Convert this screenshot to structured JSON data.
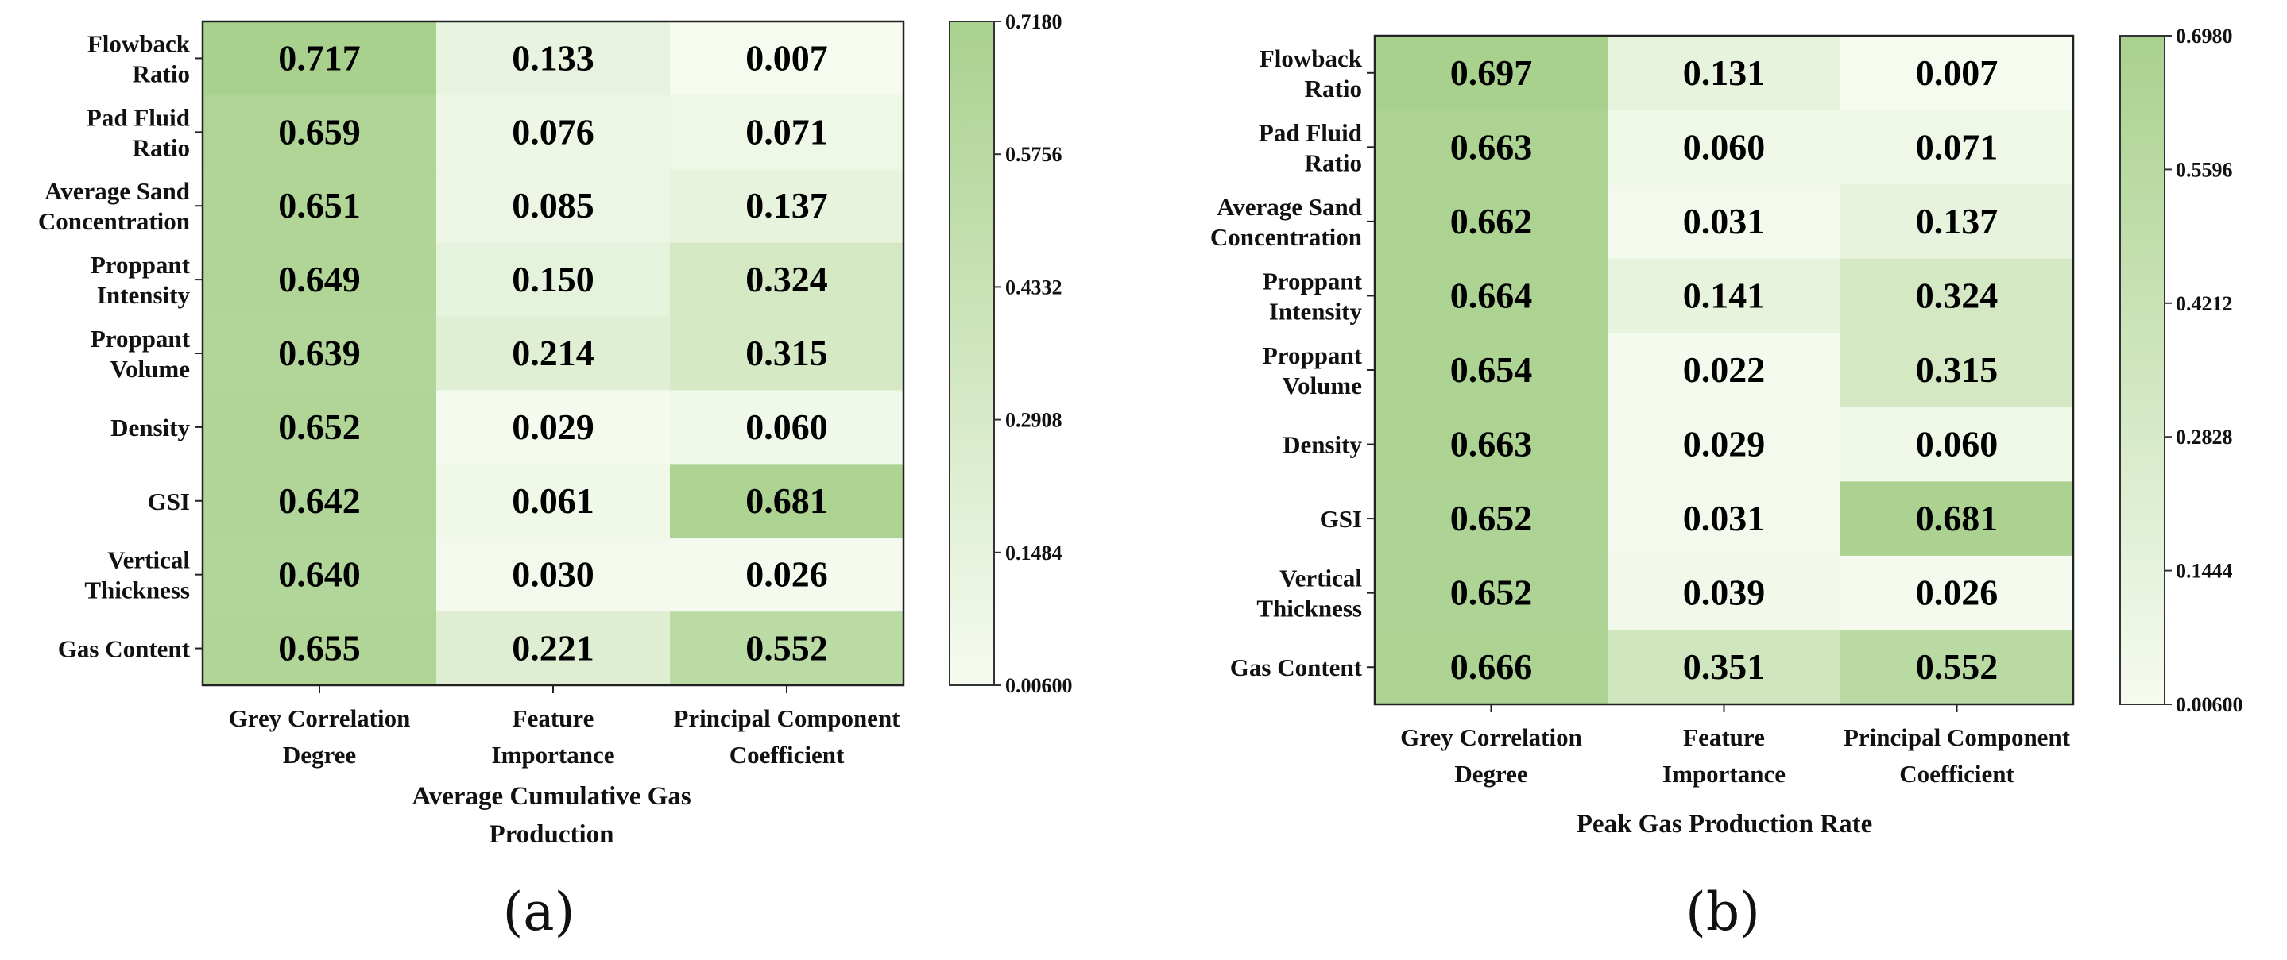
{
  "chart_data": [
    {
      "type": "heatmap",
      "panel_label": "(a)",
      "xlabel": "Average Cumulative Gas Production",
      "rows": [
        "Flowback Ratio",
        "Pad Fluid Ratio",
        "Average Sand Concentration",
        "Proppant Intensity",
        "Proppant Volume",
        "Density",
        "GSI",
        "Vertical Thickness",
        "Gas Content"
      ],
      "row_lines": [
        [
          "Flowback",
          "Ratio"
        ],
        [
          "Pad Fluid",
          "Ratio"
        ],
        [
          "Average Sand",
          "Concentration"
        ],
        [
          "Proppant",
          "Intensity"
        ],
        [
          "Proppant",
          "Volume"
        ],
        [
          "Density"
        ],
        [
          "GSI"
        ],
        [
          "Vertical",
          "Thickness"
        ],
        [
          "Gas Content"
        ]
      ],
      "columns": [
        "Grey Correlation Degree",
        "Feature Importance",
        "Principal Component Coefficient"
      ],
      "column_lines": [
        [
          "Grey Correlation",
          "Degree"
        ],
        [
          "Feature",
          "Importance"
        ],
        [
          "Principal Component",
          "Coefficient"
        ]
      ],
      "values": [
        [
          "0.717",
          "0.133",
          "0.007"
        ],
        [
          "0.659",
          "0.076",
          "0.071"
        ],
        [
          "0.651",
          "0.085",
          "0.137"
        ],
        [
          "0.649",
          "0.150",
          "0.324"
        ],
        [
          "0.639",
          "0.214",
          "0.315"
        ],
        [
          "0.652",
          "0.029",
          "0.060"
        ],
        [
          "0.642",
          "0.061",
          "0.681"
        ],
        [
          "0.640",
          "0.030",
          "0.026"
        ],
        [
          "0.655",
          "0.221",
          "0.552"
        ]
      ],
      "colorbar": {
        "min": 0.006,
        "max": 0.718,
        "ticks": [
          "0.7180",
          "0.5756",
          "0.4332",
          "0.2908",
          "0.1484",
          "0.00600"
        ],
        "tick_values": [
          0.718,
          0.5756,
          0.4332,
          0.2908,
          0.1484,
          0.006
        ],
        "color_low": "#f6fbf0",
        "color_high": "#a9d18e"
      }
    },
    {
      "type": "heatmap",
      "panel_label": "(b)",
      "xlabel": "Peak Gas Production Rate",
      "rows": [
        "Flowback Ratio",
        "Pad Fluid Ratio",
        "Average Sand Concentration",
        "Proppant Intensity",
        "Proppant Volume",
        "Density",
        "GSI",
        "Vertical Thickness",
        "Gas Content"
      ],
      "row_lines": [
        [
          "Flowback",
          "Ratio"
        ],
        [
          "Pad Fluid",
          "Ratio"
        ],
        [
          "Average Sand",
          "Concentration"
        ],
        [
          "Proppant",
          "Intensity"
        ],
        [
          "Proppant",
          "Volume"
        ],
        [
          "Density"
        ],
        [
          "GSI"
        ],
        [
          "Vertical",
          "Thickness"
        ],
        [
          "Gas Content"
        ]
      ],
      "columns": [
        "Grey Correlation Degree",
        "Feature Importance",
        "Principal Component Coefficient"
      ],
      "column_lines": [
        [
          "Grey Correlation",
          "Degree"
        ],
        [
          "Feature",
          "Importance"
        ],
        [
          "Principal Component",
          "Coefficient"
        ]
      ],
      "values": [
        [
          "0.697",
          "0.131",
          "0.007"
        ],
        [
          "0.663",
          "0.060",
          "0.071"
        ],
        [
          "0.662",
          "0.031",
          "0.137"
        ],
        [
          "0.664",
          "0.141",
          "0.324"
        ],
        [
          "0.654",
          "0.022",
          "0.315"
        ],
        [
          "0.663",
          "0.029",
          "0.060"
        ],
        [
          "0.652",
          "0.031",
          "0.681"
        ],
        [
          "0.652",
          "0.039",
          "0.026"
        ],
        [
          "0.666",
          "0.351",
          "0.552"
        ]
      ],
      "colorbar": {
        "min": 0.006,
        "max": 0.698,
        "ticks": [
          "0.6980",
          "0.5596",
          "0.4212",
          "0.2828",
          "0.1444",
          "0.00600"
        ],
        "tick_values": [
          0.698,
          0.5596,
          0.4212,
          0.2828,
          0.1444,
          0.006
        ],
        "color_low": "#f6fbf0",
        "color_high": "#a9d18e"
      }
    }
  ]
}
